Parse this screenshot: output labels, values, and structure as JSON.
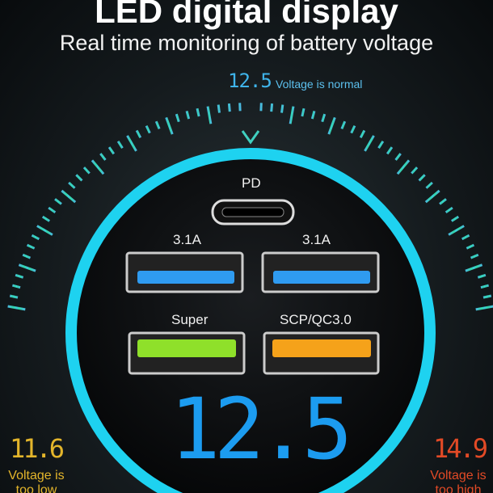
{
  "title": "LED digital display",
  "subtitle": "Real time monitoring of battery voltage",
  "gauge": {
    "top_value": "12.5",
    "top_label": "Voltage is normal",
    "pointer_icon": "chevron-down-icon",
    "colors": {
      "low": "#e3b52b",
      "normal": "#3fb4ea",
      "high": "#e24a26",
      "ring": "#1ed2f0"
    }
  },
  "ports": {
    "pd": "PD",
    "usb1": "3.1A",
    "usb2": "3.1A",
    "usb3": "Super",
    "usb4": "SCP/QC3.0",
    "colors": {
      "usb1": "#2f9bf0",
      "usb2": "#2f9bf0",
      "usb3": "#8fe02a",
      "usb4": "#f5a21a"
    }
  },
  "display_value": "12.5",
  "low": {
    "value": "11.6",
    "line1": "Voltage is",
    "line2": "too low"
  },
  "high": {
    "value": "14.9",
    "line1": "Voltage is",
    "line2": "too high"
  }
}
